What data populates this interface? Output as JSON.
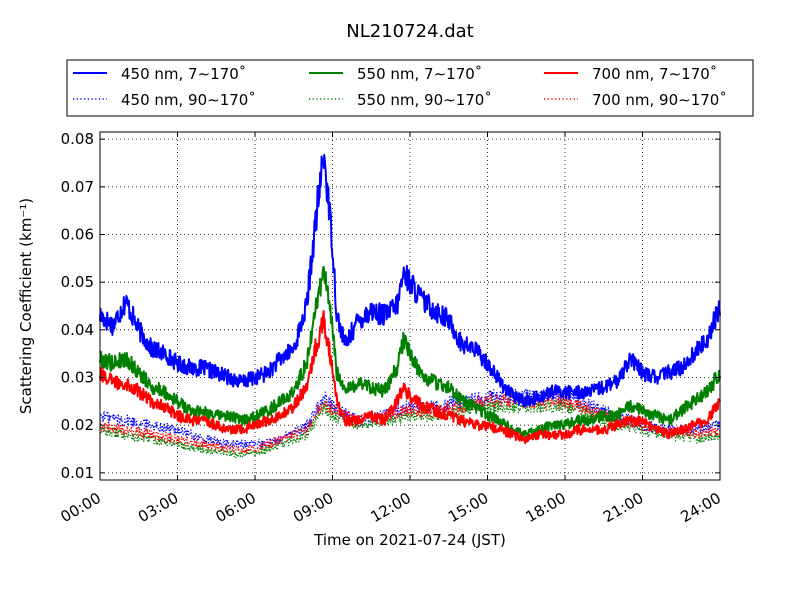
{
  "chart_data": {
    "type": "line",
    "title": "NL210724.dat",
    "xlabel": "Time on 2021-07-24 (JST)",
    "ylabel": "Scattering Coefficient (km⁻¹)",
    "xlim": [
      "00:00",
      "24:00"
    ],
    "ylim": [
      0.0085,
      0.0815
    ],
    "x_ticks": [
      "00:00",
      "03:00",
      "06:00",
      "09:00",
      "12:00",
      "15:00",
      "18:00",
      "21:00",
      "24:00"
    ],
    "y_ticks": [
      "0.01",
      "0.02",
      "0.03",
      "0.04",
      "0.05",
      "0.06",
      "0.07",
      "0.08"
    ],
    "grid": true,
    "legend_position": "top, above plot, 3 columns",
    "series": [
      {
        "name": "450 nm, 7∼170˚",
        "color": "#0000ff",
        "style": "solid",
        "points": [
          [
            "00:00",
            0.043
          ],
          [
            "00:30",
            0.041
          ],
          [
            "01:00",
            0.046
          ],
          [
            "01:30",
            0.04
          ],
          [
            "02:00",
            0.036
          ],
          [
            "02:30",
            0.035
          ],
          [
            "03:00",
            0.033
          ],
          [
            "03:30",
            0.032
          ],
          [
            "04:00",
            0.032
          ],
          [
            "04:30",
            0.031
          ],
          [
            "05:00",
            0.03
          ],
          [
            "05:30",
            0.029
          ],
          [
            "06:00",
            0.03
          ],
          [
            "06:30",
            0.031
          ],
          [
            "07:00",
            0.034
          ],
          [
            "07:30",
            0.036
          ],
          [
            "08:00",
            0.045
          ],
          [
            "08:20",
            0.062
          ],
          [
            "08:40",
            0.077
          ],
          [
            "09:00",
            0.058
          ],
          [
            "09:10",
            0.043
          ],
          [
            "09:30",
            0.037
          ],
          [
            "10:00",
            0.042
          ],
          [
            "10:30",
            0.044
          ],
          [
            "11:00",
            0.043
          ],
          [
            "11:30",
            0.045
          ],
          [
            "11:45",
            0.052
          ],
          [
            "12:00",
            0.05
          ],
          [
            "12:30",
            0.046
          ],
          [
            "13:00",
            0.044
          ],
          [
            "13:30",
            0.042
          ],
          [
            "14:00",
            0.037
          ],
          [
            "14:30",
            0.036
          ],
          [
            "15:00",
            0.033
          ],
          [
            "15:30",
            0.029
          ],
          [
            "16:00",
            0.026
          ],
          [
            "16:30",
            0.025
          ],
          [
            "17:00",
            0.026
          ],
          [
            "17:30",
            0.027
          ],
          [
            "18:00",
            0.027
          ],
          [
            "18:30",
            0.027
          ],
          [
            "19:00",
            0.027
          ],
          [
            "19:30",
            0.028
          ],
          [
            "20:00",
            0.029
          ],
          [
            "20:30",
            0.034
          ],
          [
            "21:00",
            0.031
          ],
          [
            "21:30",
            0.03
          ],
          [
            "22:00",
            0.031
          ],
          [
            "22:30",
            0.032
          ],
          [
            "23:00",
            0.035
          ],
          [
            "23:30",
            0.038
          ],
          [
            "24:00",
            0.045
          ]
        ]
      },
      {
        "name": "450 nm, 90∼170˚",
        "color": "#0000ff",
        "style": "dotted",
        "points": [
          [
            "00:00",
            0.022
          ],
          [
            "01:00",
            0.021
          ],
          [
            "02:00",
            0.02
          ],
          [
            "03:00",
            0.019
          ],
          [
            "04:00",
            0.017
          ],
          [
            "05:00",
            0.016
          ],
          [
            "06:00",
            0.016
          ],
          [
            "07:00",
            0.017
          ],
          [
            "08:00",
            0.02
          ],
          [
            "08:40",
            0.026
          ],
          [
            "09:00",
            0.024
          ],
          [
            "10:00",
            0.021
          ],
          [
            "11:00",
            0.022
          ],
          [
            "12:00",
            0.024
          ],
          [
            "13:00",
            0.024
          ],
          [
            "14:00",
            0.025
          ],
          [
            "15:00",
            0.026
          ],
          [
            "16:00",
            0.026
          ],
          [
            "17:00",
            0.026
          ],
          [
            "18:00",
            0.026
          ],
          [
            "19:00",
            0.024
          ],
          [
            "20:00",
            0.022
          ],
          [
            "21:00",
            0.02
          ],
          [
            "22:00",
            0.019
          ],
          [
            "23:00",
            0.019
          ],
          [
            "24:00",
            0.02
          ]
        ]
      },
      {
        "name": "550 nm, 7∼170˚",
        "color": "#008000",
        "style": "solid",
        "points": [
          [
            "00:00",
            0.034
          ],
          [
            "00:30",
            0.033
          ],
          [
            "01:00",
            0.034
          ],
          [
            "01:30",
            0.031
          ],
          [
            "02:00",
            0.028
          ],
          [
            "02:30",
            0.027
          ],
          [
            "03:00",
            0.025
          ],
          [
            "03:30",
            0.023
          ],
          [
            "04:00",
            0.023
          ],
          [
            "04:30",
            0.022
          ],
          [
            "05:00",
            0.022
          ],
          [
            "05:30",
            0.021
          ],
          [
            "06:00",
            0.022
          ],
          [
            "06:30",
            0.023
          ],
          [
            "07:00",
            0.025
          ],
          [
            "07:30",
            0.027
          ],
          [
            "08:00",
            0.033
          ],
          [
            "08:20",
            0.044
          ],
          [
            "08:40",
            0.053
          ],
          [
            "09:00",
            0.04
          ],
          [
            "09:10",
            0.031
          ],
          [
            "09:30",
            0.027
          ],
          [
            "10:00",
            0.029
          ],
          [
            "10:30",
            0.028
          ],
          [
            "11:00",
            0.027
          ],
          [
            "11:30",
            0.032
          ],
          [
            "11:45",
            0.038
          ],
          [
            "12:00",
            0.035
          ],
          [
            "12:30",
            0.03
          ],
          [
            "13:00",
            0.029
          ],
          [
            "13:30",
            0.028
          ],
          [
            "14:00",
            0.025
          ],
          [
            "14:30",
            0.024
          ],
          [
            "15:00",
            0.022
          ],
          [
            "15:30",
            0.021
          ],
          [
            "16:00",
            0.019
          ],
          [
            "16:30",
            0.018
          ],
          [
            "17:00",
            0.019
          ],
          [
            "17:30",
            0.02
          ],
          [
            "18:00",
            0.02
          ],
          [
            "18:30",
            0.021
          ],
          [
            "19:00",
            0.021
          ],
          [
            "19:30",
            0.022
          ],
          [
            "20:00",
            0.022
          ],
          [
            "20:30",
            0.024
          ],
          [
            "21:00",
            0.023
          ],
          [
            "21:30",
            0.022
          ],
          [
            "22:00",
            0.021
          ],
          [
            "22:30",
            0.023
          ],
          [
            "23:00",
            0.025
          ],
          [
            "23:30",
            0.027
          ],
          [
            "24:00",
            0.031
          ]
        ]
      },
      {
        "name": "550 nm, 90∼170˚",
        "color": "#008000",
        "style": "dotted",
        "points": [
          [
            "00:00",
            0.019
          ],
          [
            "01:00",
            0.018
          ],
          [
            "02:00",
            0.017
          ],
          [
            "03:00",
            0.016
          ],
          [
            "04:00",
            0.015
          ],
          [
            "05:00",
            0.014
          ],
          [
            "06:00",
            0.014
          ],
          [
            "07:00",
            0.016
          ],
          [
            "08:00",
            0.018
          ],
          [
            "08:40",
            0.024
          ],
          [
            "09:00",
            0.022
          ],
          [
            "10:00",
            0.02
          ],
          [
            "11:00",
            0.021
          ],
          [
            "12:00",
            0.022
          ],
          [
            "13:00",
            0.022
          ],
          [
            "14:00",
            0.023
          ],
          [
            "15:00",
            0.024
          ],
          [
            "16:00",
            0.024
          ],
          [
            "17:00",
            0.024
          ],
          [
            "18:00",
            0.024
          ],
          [
            "19:00",
            0.022
          ],
          [
            "20:00",
            0.02
          ],
          [
            "21:00",
            0.019
          ],
          [
            "22:00",
            0.018
          ],
          [
            "23:00",
            0.017
          ],
          [
            "24:00",
            0.018
          ]
        ]
      },
      {
        "name": "700 nm, 7∼170˚",
        "color": "#ff0000",
        "style": "solid",
        "points": [
          [
            "00:00",
            0.031
          ],
          [
            "00:30",
            0.029
          ],
          [
            "01:00",
            0.029
          ],
          [
            "01:30",
            0.027
          ],
          [
            "02:00",
            0.025
          ],
          [
            "02:30",
            0.024
          ],
          [
            "03:00",
            0.022
          ],
          [
            "03:30",
            0.021
          ],
          [
            "04:00",
            0.021
          ],
          [
            "04:30",
            0.02
          ],
          [
            "05:00",
            0.019
          ],
          [
            "05:30",
            0.019
          ],
          [
            "06:00",
            0.02
          ],
          [
            "06:30",
            0.021
          ],
          [
            "07:00",
            0.022
          ],
          [
            "07:30",
            0.024
          ],
          [
            "08:00",
            0.028
          ],
          [
            "08:20",
            0.036
          ],
          [
            "08:40",
            0.042
          ],
          [
            "09:00",
            0.032
          ],
          [
            "09:10",
            0.025
          ],
          [
            "09:30",
            0.021
          ],
          [
            "10:00",
            0.021
          ],
          [
            "10:30",
            0.022
          ],
          [
            "11:00",
            0.021
          ],
          [
            "11:30",
            0.025
          ],
          [
            "11:45",
            0.028
          ],
          [
            "12:00",
            0.026
          ],
          [
            "12:30",
            0.024
          ],
          [
            "13:00",
            0.023
          ],
          [
            "13:30",
            0.022
          ],
          [
            "14:00",
            0.021
          ],
          [
            "14:30",
            0.02
          ],
          [
            "15:00",
            0.02
          ],
          [
            "15:30",
            0.019
          ],
          [
            "16:00",
            0.018
          ],
          [
            "16:30",
            0.017
          ],
          [
            "17:00",
            0.018
          ],
          [
            "17:30",
            0.018
          ],
          [
            "18:00",
            0.018
          ],
          [
            "18:30",
            0.019
          ],
          [
            "19:00",
            0.019
          ],
          [
            "19:30",
            0.019
          ],
          [
            "20:00",
            0.02
          ],
          [
            "20:30",
            0.021
          ],
          [
            "21:00",
            0.021
          ],
          [
            "21:30",
            0.019
          ],
          [
            "22:00",
            0.018
          ],
          [
            "22:30",
            0.019
          ],
          [
            "23:00",
            0.02
          ],
          [
            "23:30",
            0.021
          ],
          [
            "24:00",
            0.025
          ]
        ]
      },
      {
        "name": "700 nm, 90∼170˚",
        "color": "#ff0000",
        "style": "dotted",
        "points": [
          [
            "00:00",
            0.02
          ],
          [
            "01:00",
            0.019
          ],
          [
            "02:00",
            0.018
          ],
          [
            "03:00",
            0.017
          ],
          [
            "04:00",
            0.016
          ],
          [
            "05:00",
            0.015
          ],
          [
            "06:00",
            0.015
          ],
          [
            "07:00",
            0.017
          ],
          [
            "08:00",
            0.019
          ],
          [
            "08:40",
            0.025
          ],
          [
            "09:00",
            0.023
          ],
          [
            "10:00",
            0.021
          ],
          [
            "11:00",
            0.022
          ],
          [
            "12:00",
            0.023
          ],
          [
            "13:00",
            0.023
          ],
          [
            "14:00",
            0.024
          ],
          [
            "15:00",
            0.025
          ],
          [
            "16:00",
            0.025
          ],
          [
            "17:00",
            0.025
          ],
          [
            "18:00",
            0.025
          ],
          [
            "19:00",
            0.023
          ],
          [
            "20:00",
            0.021
          ],
          [
            "21:00",
            0.02
          ],
          [
            "22:00",
            0.019
          ],
          [
            "23:00",
            0.018
          ],
          [
            "24:00",
            0.019
          ]
        ]
      }
    ]
  }
}
